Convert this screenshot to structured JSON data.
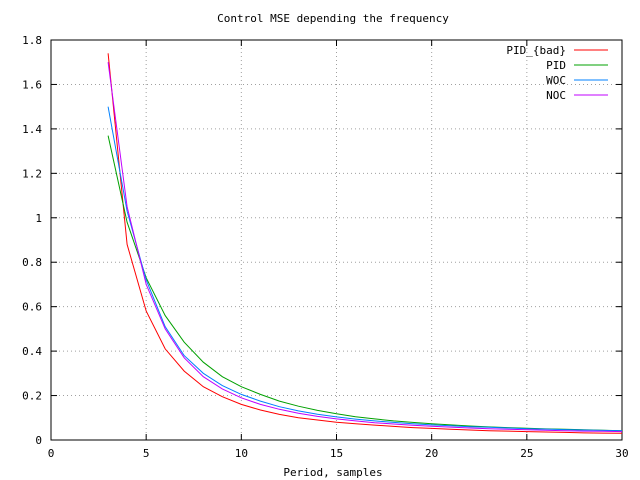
{
  "chart_data": {
    "type": "line",
    "title": "Control MSE depending the frequency",
    "xlabel": "Period, samples",
    "ylabel": "",
    "xlim": [
      0,
      30
    ],
    "ylim": [
      0,
      1.8
    ],
    "xticks": [
      0,
      5,
      10,
      15,
      20,
      25,
      30
    ],
    "yticks": [
      0,
      0.2,
      0.4,
      0.6,
      0.8,
      1,
      1.2,
      1.4,
      1.6,
      1.8
    ],
    "xtick_labels": [
      "0",
      "5",
      "10",
      "15",
      "20",
      "25",
      "30"
    ],
    "ytick_labels": [
      "0",
      "0.2",
      "0.4",
      "0.6",
      "0.8",
      "1",
      "1.2",
      "1.4",
      "1.6",
      "1.8"
    ],
    "grid": true,
    "legend_position": "top-right",
    "series": [
      {
        "name": "PID_{bad}",
        "color": "#ff0000",
        "x": [
          3,
          4,
          5,
          6,
          7,
          8,
          9,
          10,
          11,
          12,
          13,
          14,
          15,
          16,
          17,
          18,
          19,
          20,
          21,
          22,
          23,
          24,
          25,
          26,
          27,
          28,
          29,
          30
        ],
        "values": [
          1.74,
          0.88,
          0.58,
          0.41,
          0.31,
          0.24,
          0.195,
          0.16,
          0.135,
          0.115,
          0.1,
          0.09,
          0.08,
          0.073,
          0.067,
          0.061,
          0.056,
          0.052,
          0.048,
          0.045,
          0.042,
          0.04,
          0.038,
          0.036,
          0.034,
          0.032,
          0.031,
          0.03
        ]
      },
      {
        "name": "PID",
        "color": "#00a000",
        "x": [
          3,
          4,
          5,
          6,
          7,
          8,
          9,
          10,
          11,
          12,
          13,
          14,
          15,
          16,
          17,
          18,
          19,
          20,
          21,
          22,
          23,
          24,
          25,
          26,
          27,
          28,
          29,
          30
        ],
        "values": [
          1.37,
          0.98,
          0.73,
          0.56,
          0.44,
          0.35,
          0.285,
          0.24,
          0.205,
          0.175,
          0.152,
          0.133,
          0.118,
          0.105,
          0.095,
          0.086,
          0.079,
          0.073,
          0.068,
          0.063,
          0.059,
          0.056,
          0.053,
          0.05,
          0.048,
          0.046,
          0.044,
          0.042
        ]
      },
      {
        "name": "WOC",
        "color": "#0080ff",
        "x": [
          3,
          4,
          5,
          6,
          7,
          8,
          9,
          10,
          11,
          12,
          13,
          14,
          15,
          16,
          17,
          18,
          19,
          20,
          21,
          22,
          23,
          24,
          25,
          26,
          27,
          28,
          29,
          30
        ],
        "values": [
          1.5,
          1.03,
          0.72,
          0.51,
          0.38,
          0.3,
          0.245,
          0.205,
          0.175,
          0.15,
          0.131,
          0.116,
          0.104,
          0.094,
          0.086,
          0.079,
          0.073,
          0.068,
          0.064,
          0.06,
          0.057,
          0.054,
          0.051,
          0.049,
          0.047,
          0.045,
          0.043,
          0.042
        ]
      },
      {
        "name": "NOC",
        "color": "#c000ff",
        "x": [
          3,
          4,
          5,
          6,
          7,
          8,
          9,
          10,
          11,
          12,
          13,
          14,
          15,
          16,
          17,
          18,
          19,
          20,
          21,
          22,
          23,
          24,
          25,
          26,
          27,
          28,
          29,
          30
        ],
        "values": [
          1.7,
          1.05,
          0.7,
          0.5,
          0.37,
          0.285,
          0.23,
          0.19,
          0.16,
          0.138,
          0.12,
          0.106,
          0.095,
          0.086,
          0.078,
          0.072,
          0.066,
          0.062,
          0.058,
          0.054,
          0.051,
          0.048,
          0.046,
          0.044,
          0.042,
          0.04,
          0.039,
          0.038
        ]
      }
    ]
  }
}
